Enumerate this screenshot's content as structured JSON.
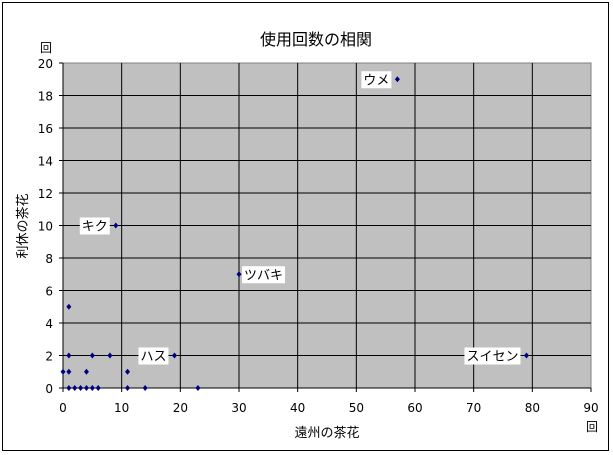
{
  "chart_data": {
    "type": "scatter",
    "title": "使用回数の相関",
    "xlabel": "遠州の茶花",
    "ylabel": "利休の茶花",
    "xunit": "回",
    "yunit": "回",
    "xlim": [
      0,
      90
    ],
    "ylim": [
      0,
      20
    ],
    "xticks": [
      0,
      10,
      20,
      30,
      40,
      50,
      60,
      70,
      80,
      90
    ],
    "yticks": [
      0,
      2,
      4,
      6,
      8,
      10,
      12,
      14,
      16,
      18,
      20
    ],
    "grid": true,
    "plot_background": "#c0c0c0",
    "marker_color": "#000080",
    "label_text_color": "#000080",
    "points": [
      {
        "x": 0,
        "y": 1
      },
      {
        "x": 1,
        "y": 1
      },
      {
        "x": 1,
        "y": 2
      },
      {
        "x": 1,
        "y": 5
      },
      {
        "x": 1,
        "y": 0
      },
      {
        "x": 2,
        "y": 0
      },
      {
        "x": 3,
        "y": 0
      },
      {
        "x": 4,
        "y": 0
      },
      {
        "x": 4,
        "y": 1
      },
      {
        "x": 5,
        "y": 0
      },
      {
        "x": 5,
        "y": 2
      },
      {
        "x": 6,
        "y": 0
      },
      {
        "x": 8,
        "y": 2
      },
      {
        "x": 9,
        "y": 10
      },
      {
        "x": 11,
        "y": 1
      },
      {
        "x": 11,
        "y": 0
      },
      {
        "x": 14,
        "y": 0
      },
      {
        "x": 19,
        "y": 2
      },
      {
        "x": 23,
        "y": 0
      },
      {
        "x": 30,
        "y": 7
      },
      {
        "x": 57,
        "y": 19
      },
      {
        "x": 79,
        "y": 2
      }
    ],
    "annotations": [
      {
        "text": "ウメ",
        "x": 57,
        "y": 19,
        "side": "left"
      },
      {
        "text": "キク",
        "x": 9,
        "y": 10,
        "side": "left"
      },
      {
        "text": "ツバキ",
        "x": 30,
        "y": 7,
        "side": "right"
      },
      {
        "text": "ハス",
        "x": 19,
        "y": 2,
        "side": "left"
      },
      {
        "text": "スイセン",
        "x": 79,
        "y": 2,
        "side": "left"
      }
    ]
  }
}
